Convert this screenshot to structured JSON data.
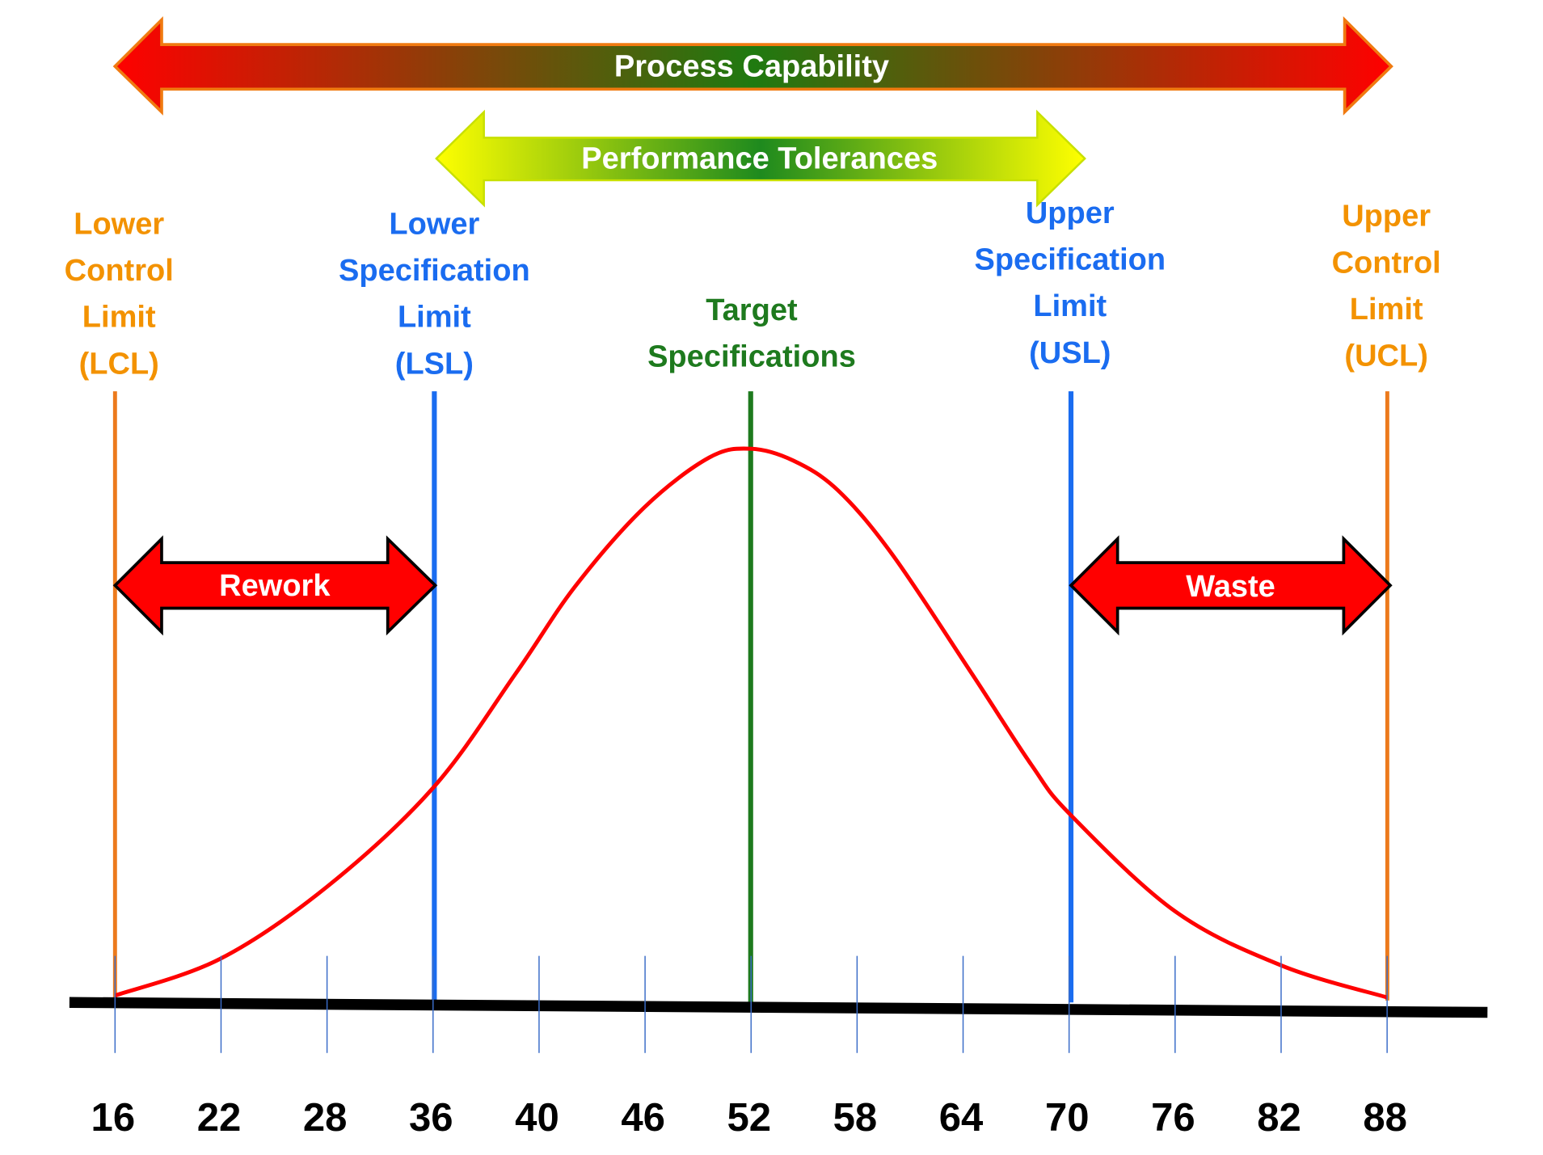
{
  "arrows": {
    "process_capability": "Process Capability",
    "performance_tolerances": "Performance Tolerances",
    "rework": "Rework",
    "waste": "Waste"
  },
  "limits": {
    "lcl": [
      "Lower",
      "Control",
      "Limit",
      "(LCL)"
    ],
    "lsl": [
      "Lower",
      "Specification",
      "Limit",
      "(LSL)"
    ],
    "target": [
      "Target",
      "Specifications"
    ],
    "usl": [
      "Upper",
      "Specification",
      "Limit",
      "(USL)"
    ],
    "ucl": [
      "Upper",
      "Control",
      "Limit",
      "(UCL)"
    ]
  },
  "axis_labels": [
    "16",
    "22",
    "28",
    "36",
    "40",
    "46",
    "52",
    "58",
    "64",
    "70",
    "76",
    "82",
    "88"
  ]
}
